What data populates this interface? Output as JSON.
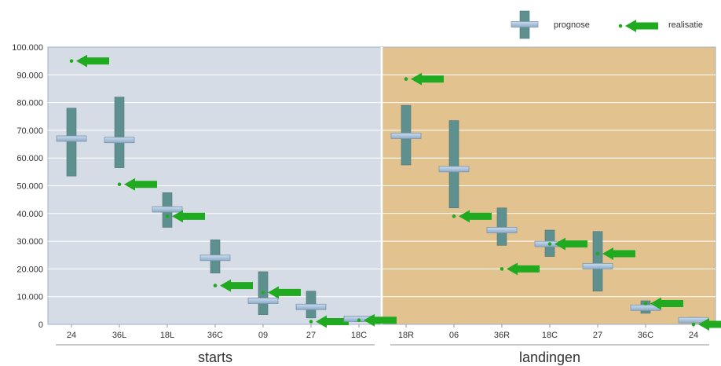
{
  "chart_data": {
    "type": "range-comparison",
    "legend": {
      "prognose_label": "prognose",
      "realisatie_label": "realisatie",
      "placement": "top-right"
    },
    "y_ticks": [
      "0",
      "10.000",
      "20.000",
      "30.000",
      "40.000",
      "50.000",
      "60.000",
      "70.000",
      "80.000",
      "90.000",
      "100.000"
    ],
    "ylim": [
      0,
      100000
    ],
    "grid": true,
    "colors": {
      "starts_panel": "#d5dce6",
      "landingen_panel": "#e2c38f",
      "prognose_bar": "#5f9090",
      "prognose_marker": "#a9c4dc",
      "realisatie_arrow": "#1faa1f"
    },
    "groups": [
      {
        "name": "starts",
        "runways": [
          {
            "label": "24",
            "prognose": 67000,
            "range": [
              53500,
              78000
            ],
            "realisatie": 95000
          },
          {
            "label": "36L",
            "prognose": 66500,
            "range": [
              56500,
              82000
            ],
            "realisatie": 50500
          },
          {
            "label": "18L",
            "prognose": 41500,
            "range": [
              35000,
              47500
            ],
            "realisatie": 39000
          },
          {
            "label": "36C",
            "prognose": 24000,
            "range": [
              18500,
              30500
            ],
            "realisatie": 14000
          },
          {
            "label": "09",
            "prognose": 8500,
            "range": [
              3500,
              19000
            ],
            "realisatie": 11500
          },
          {
            "label": "27",
            "prognose": 6300,
            "range": [
              2300,
              12000
            ],
            "realisatie": 1000
          },
          {
            "label": "18C",
            "prognose": 2000,
            "range": [
              1000,
              3000
            ],
            "realisatie": 1500
          }
        ]
      },
      {
        "name": "landingen",
        "runways": [
          {
            "label": "18R",
            "prognose": 68000,
            "range": [
              57500,
              79000
            ],
            "realisatie": 88500
          },
          {
            "label": "06",
            "prognose": 56000,
            "range": [
              42000,
              73500
            ],
            "realisatie": 39000
          },
          {
            "label": "36R",
            "prognose": 34000,
            "range": [
              28500,
              42000
            ],
            "realisatie": 20000
          },
          {
            "label": "18C",
            "prognose": 29000,
            "range": [
              24500,
              34000
            ],
            "realisatie": 29000
          },
          {
            "label": "27",
            "prognose": 21000,
            "range": [
              12000,
              33500
            ],
            "realisatie": 25500
          },
          {
            "label": "36C",
            "prognose": 6000,
            "range": [
              4000,
              8500
            ],
            "realisatie": 7500
          },
          {
            "label": "24",
            "prognose": 1500,
            "range": [
              500,
              2500
            ],
            "realisatie": 0
          }
        ]
      }
    ]
  }
}
